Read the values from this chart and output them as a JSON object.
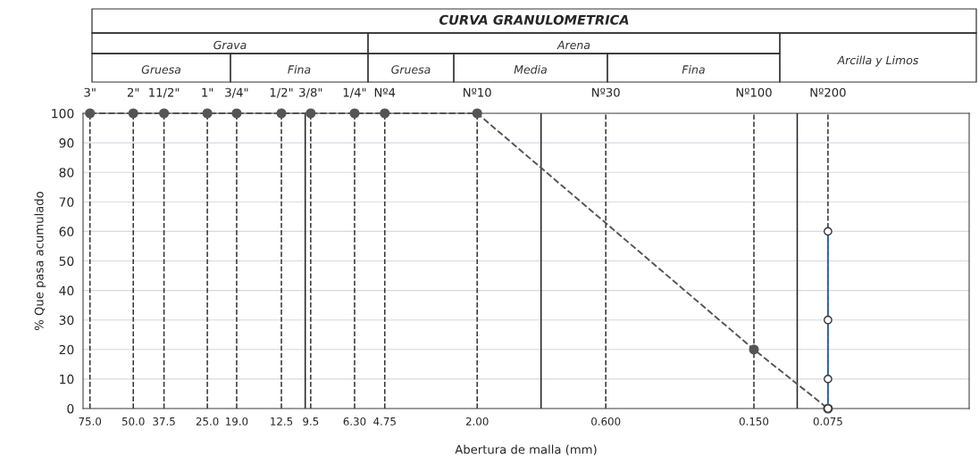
{
  "chart_data": {
    "type": "line",
    "title": "CURVA GRANULOMETRICA",
    "xlabel": "Abertura de malla (mm)",
    "ylabel": "% Que pasa acumulado",
    "log": "x",
    "grid": "y",
    "xlim": [
      80,
      0.02
    ],
    "ylim": [
      0,
      100
    ],
    "xticks": [
      {
        "value": 75,
        "label": "75.0"
      },
      {
        "value": 50,
        "label": "50.0"
      },
      {
        "value": 37.5,
        "label": "37.5"
      },
      {
        "value": 25,
        "label": "25.0"
      },
      {
        "value": 19,
        "label": "19.0"
      },
      {
        "value": 12.5,
        "label": "12.5"
      },
      {
        "value": 9.5,
        "label": "9.5"
      },
      {
        "value": 6.3,
        "label": "6.30"
      },
      {
        "value": 4.75,
        "label": "4.75"
      },
      {
        "value": 2,
        "label": "2.00"
      },
      {
        "value": 0.6,
        "label": "0.600"
      },
      {
        "value": 0.15,
        "label": "0.150"
      },
      {
        "value": 0.075,
        "label": "0.075"
      }
    ],
    "yticks": [
      0,
      10,
      20,
      30,
      40,
      50,
      60,
      70,
      80,
      90,
      100
    ],
    "annotations": [
      {
        "text": "3\"",
        "x": 75,
        "y": 100
      },
      {
        "text": "2\"",
        "x": 50,
        "y": 100
      },
      {
        "text": "11/2\"",
        "x": 37.5,
        "y": 100
      },
      {
        "text": "1\"",
        "x": 25,
        "y": 100
      },
      {
        "text": "3/4\"",
        "x": 19,
        "y": 100
      },
      {
        "text": "1/2\"",
        "x": 12.5,
        "y": 100
      },
      {
        "text": "3/8\"",
        "x": 9.5,
        "y": 100
      },
      {
        "text": "1/4\"",
        "x": 6.3,
        "y": 100
      },
      {
        "text": "Nº4",
        "x": 4.75,
        "y": 100
      },
      {
        "text": "Nº10",
        "x": 2,
        "y": 100
      },
      {
        "text": "Nº30",
        "x": 0.6,
        "y": 100
      },
      {
        "text": "Nº100",
        "x": 0.15,
        "y": 100
      },
      {
        "text": "Nº200",
        "x": 0.075,
        "y": 100
      },
      "Grava",
      "Arena",
      "Arcilla y Limos",
      "Gruesa",
      "Fina",
      "Gruesa",
      "Media",
      "Fina"
    ],
    "series": [
      {
        "color": "#555555",
        "line_style": "dashed",
        "marker": "circle",
        "x": [
          75,
          50,
          37.5,
          25,
          19,
          12.5,
          9.5,
          6.3,
          4.75,
          2,
          0.15,
          0.075
        ],
        "values": [
          100,
          100,
          100,
          100,
          100,
          100,
          100,
          100,
          100,
          100,
          20,
          0
        ]
      },
      {
        "color": "#2f62b8",
        "line_style": "solid",
        "marker": "circle",
        "x": [
          0.075,
          0.075,
          0.075,
          0.075
        ],
        "values": [
          0,
          10,
          30,
          60
        ]
      }
    ],
    "ref_lines": [
      {
        "axis": "x",
        "value": 75,
        "line_style": "dashed",
        "color": "#333333"
      },
      {
        "axis": "x",
        "value": 50,
        "line_style": "dashed",
        "color": "#333333"
      },
      {
        "axis": "x",
        "value": 37.5,
        "line_style": "dashed",
        "color": "#333333"
      },
      {
        "axis": "x",
        "value": 25,
        "line_style": "dashed",
        "color": "#333333"
      },
      {
        "axis": "x",
        "value": 19,
        "line_style": "dashed",
        "color": "#333333"
      },
      {
        "axis": "x",
        "value": 12.5,
        "line_style": "dashed",
        "color": "#333333"
      },
      {
        "axis": "x",
        "value": 9.5,
        "line_style": "dashed",
        "color": "#333333"
      },
      {
        "axis": "x",
        "value": 6.3,
        "line_style": "dashed",
        "color": "#333333"
      },
      {
        "axis": "x",
        "value": 4.75,
        "line_style": "dashed",
        "color": "#333333"
      },
      {
        "axis": "x",
        "value": 2,
        "line_style": "dashed",
        "color": "#333333"
      },
      {
        "axis": "x",
        "value": 0.6,
        "line_style": "dashed",
        "color": "#333333"
      },
      {
        "axis": "x",
        "value": 0.15,
        "line_style": "dashed",
        "color": "#333333"
      },
      {
        "axis": "x",
        "value": 0.075,
        "line_style": "dashed",
        "color": "#333333"
      },
      {
        "axis": "x",
        "value": 10,
        "line_style": "solid",
        "color": "#222222"
      },
      {
        "axis": "x",
        "value": 1.1,
        "line_style": "solid",
        "color": "#222222"
      },
      {
        "axis": "x",
        "value": 0.1,
        "line_style": "solid",
        "color": "#222222"
      }
    ]
  }
}
